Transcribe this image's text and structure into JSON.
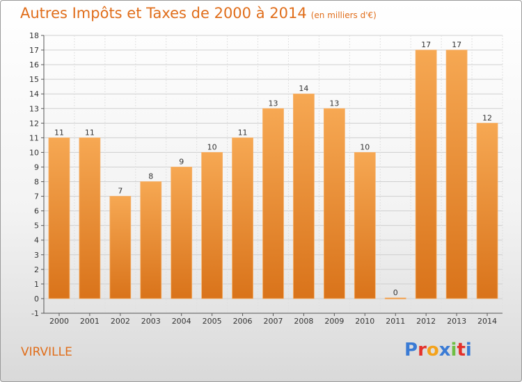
{
  "title": "Autres Impôts et Taxes de 2000 à 2014",
  "title_unit": "(en milliers d'€)",
  "city": "VIRVILLE",
  "logo": {
    "letters": [
      "P",
      "r",
      "o",
      "x",
      "i",
      "t",
      "i"
    ],
    "colors": [
      "#3a7bd5",
      "#e4312b",
      "#f4a21a",
      "#3a7bd5",
      "#6fbe44",
      "#e4312b",
      "#3a7bd5"
    ]
  },
  "colors": {
    "bar": "#f0902e",
    "bar_light": "#f6a853",
    "bar_dark": "#d9731a",
    "title": "#e06d1a"
  },
  "chart_data": {
    "type": "bar",
    "categories": [
      "2000",
      "2001",
      "2002",
      "2003",
      "2004",
      "2005",
      "2006",
      "2007",
      "2008",
      "2009",
      "2010",
      "2011",
      "2012",
      "2013",
      "2014"
    ],
    "values": [
      11,
      11,
      7,
      8,
      9,
      10,
      11,
      13,
      14,
      13,
      10,
      0,
      17,
      17,
      12
    ],
    "data_labels": [
      "11",
      "11",
      "7",
      "8",
      "9",
      "10",
      "11",
      "13",
      "14",
      "13",
      "10",
      "0",
      "17",
      "17",
      "12"
    ],
    "title": "Autres Impôts et Taxes de 2000 à 2014",
    "xlabel": "",
    "ylabel": "",
    "ylim": [
      -1,
      18
    ],
    "yticks": [
      -1,
      0,
      1,
      2,
      3,
      4,
      5,
      6,
      7,
      8,
      9,
      10,
      11,
      12,
      13,
      14,
      15,
      16,
      17,
      18
    ],
    "ytick_labels": [
      "-1",
      "0",
      "1",
      "2",
      "3",
      "4",
      "5",
      "6",
      "7",
      "8",
      "9",
      "10",
      "11",
      "12",
      "13",
      "14",
      "15",
      "16",
      "17",
      "18"
    ],
    "grid": true,
    "legend": "none"
  }
}
